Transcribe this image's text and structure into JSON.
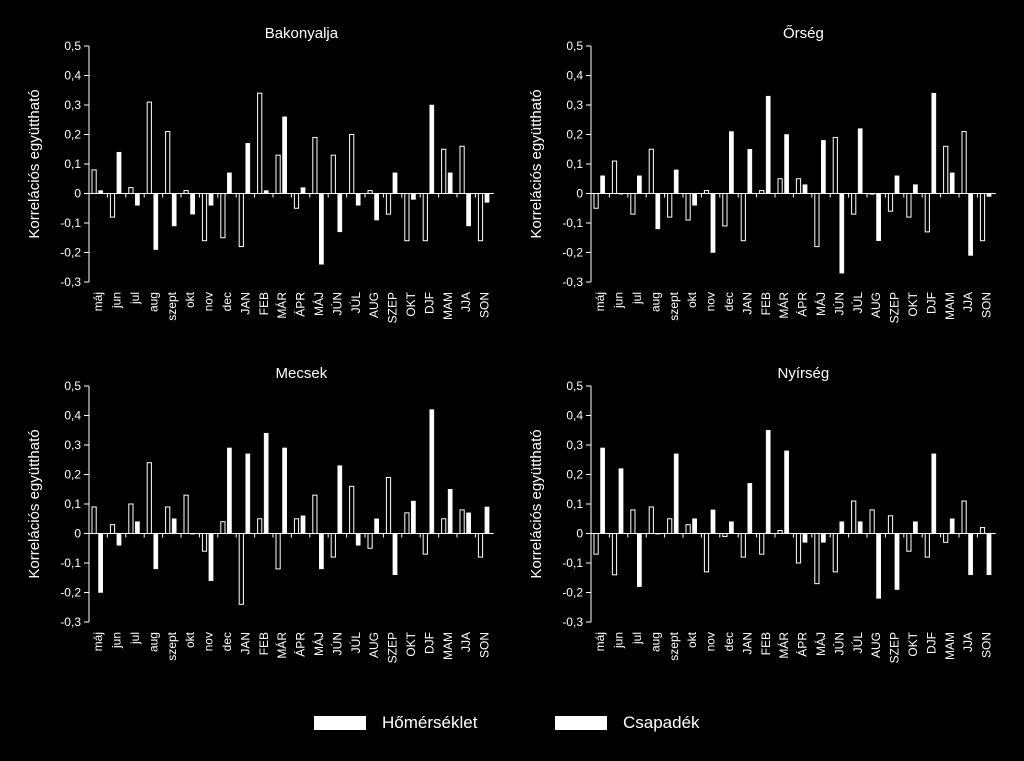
{
  "chart_data": [
    {
      "type": "bar",
      "title": "Bakonyalja",
      "ylabel": "Korrelációs együttható",
      "ylim": [
        -0.3,
        0.5
      ],
      "yticks": [
        "0,5",
        "0,4",
        "0,3",
        "0,2",
        "0,1",
        "0",
        "-0,1",
        "-0,2",
        "-0,3"
      ],
      "categories": [
        "máj",
        "jun",
        "jul",
        "aug",
        "szept",
        "okt",
        "nov",
        "dec",
        "JAN",
        "FEB",
        "MÁR",
        "ÁPR",
        "MÁJ",
        "JÚN",
        "JÚL",
        "AUG",
        "SZEP",
        "OKT",
        "DJF",
        "MAM",
        "JJA",
        "SON"
      ],
      "series": [
        {
          "name": "Hőmérséklet",
          "values": [
            0.08,
            -0.08,
            0.02,
            0.31,
            0.21,
            0.01,
            -0.16,
            -0.15,
            -0.18,
            0.34,
            0.13,
            -0.05,
            0.19,
            0.13,
            0.2,
            0.01,
            -0.07,
            -0.16,
            -0.16,
            0.15,
            0.16,
            -0.16
          ]
        },
        {
          "name": "Csapadék",
          "values": [
            0.01,
            0.14,
            -0.04,
            -0.19,
            -0.11,
            -0.07,
            -0.04,
            0.07,
            0.17,
            0.01,
            0.26,
            0.02,
            -0.24,
            -0.13,
            -0.04,
            -0.09,
            0.07,
            -0.02,
            0.3,
            0.07,
            -0.11,
            -0.03
          ]
        }
      ]
    },
    {
      "type": "bar",
      "title": "Őrség",
      "ylabel": "Korrelációs együttható",
      "ylim": [
        -0.3,
        0.5
      ],
      "yticks": [
        "0,5",
        "0,4",
        "0,3",
        "0,2",
        "0,1",
        "0",
        "-0,1",
        "-0,2",
        "-0,3"
      ],
      "categories": [
        "máj",
        "jun",
        "jul",
        "aug",
        "szept",
        "okt",
        "nov",
        "dec",
        "JAN",
        "FEB",
        "MÁR",
        "ÁPR",
        "MÁJ",
        "JÚN",
        "JÚL",
        "AUG",
        "SZEP",
        "OKT",
        "DJF",
        "MAM",
        "JJA",
        "SON"
      ],
      "series": [
        {
          "name": "Hőmérséklet",
          "values": [
            -0.05,
            0.11,
            -0.07,
            0.15,
            -0.08,
            -0.09,
            0.01,
            -0.11,
            -0.16,
            0.01,
            0.05,
            0.05,
            -0.18,
            0.19,
            -0.07,
            0.0,
            -0.06,
            -0.08,
            -0.13,
            0.16,
            0.21,
            -0.16
          ]
        },
        {
          "name": "Csapadék",
          "values": [
            0.06,
            0.0,
            0.06,
            -0.12,
            0.08,
            -0.04,
            -0.2,
            0.21,
            0.15,
            0.33,
            0.2,
            0.03,
            0.18,
            -0.27,
            0.22,
            -0.16,
            0.06,
            0.03,
            0.34,
            0.07,
            -0.21,
            -0.01
          ]
        }
      ]
    },
    {
      "type": "bar",
      "title": "Mecsek",
      "ylabel": "Korrelációs együttható",
      "ylim": [
        -0.3,
        0.5
      ],
      "yticks": [
        "0,5",
        "0,4",
        "0,3",
        "0,2",
        "0,1",
        "0",
        "-0,1",
        "-0,2",
        "-0,3"
      ],
      "categories": [
        "máj",
        "jun",
        "jul",
        "aug",
        "szept",
        "okt",
        "nov",
        "dec",
        "JAN",
        "FEB",
        "MÁR",
        "ÁPR",
        "MÁJ",
        "JÚN",
        "JÚL",
        "AUG",
        "SZEP",
        "OKT",
        "DJF",
        "MAM",
        "JJA",
        "SON"
      ],
      "series": [
        {
          "name": "Hőmérséklet",
          "values": [
            0.09,
            0.03,
            0.1,
            0.24,
            0.09,
            0.13,
            -0.06,
            0.04,
            -0.24,
            0.05,
            -0.12,
            0.05,
            0.13,
            -0.08,
            0.16,
            -0.05,
            0.19,
            0.07,
            -0.07,
            0.05,
            0.08,
            -0.08
          ]
        },
        {
          "name": "Csapadék",
          "values": [
            -0.2,
            -0.04,
            0.04,
            -0.12,
            0.05,
            0.0,
            -0.16,
            0.29,
            0.27,
            0.34,
            0.29,
            0.06,
            -0.12,
            0.23,
            -0.04,
            0.05,
            -0.14,
            0.11,
            0.42,
            0.15,
            0.07,
            0.09
          ]
        }
      ]
    },
    {
      "type": "bar",
      "title": "Nyírség",
      "ylabel": "Korrelációs együttható",
      "ylim": [
        -0.3,
        0.5
      ],
      "yticks": [
        "0,5",
        "0,4",
        "0,3",
        "0,2",
        "0,1",
        "0",
        "-0,1",
        "-0,2",
        "-0,3"
      ],
      "categories": [
        "máj",
        "jun",
        "jul",
        "aug",
        "szept",
        "okt",
        "nov",
        "dec",
        "JAN",
        "FEB",
        "MÁR",
        "ÁPR",
        "MÁJ",
        "JÚN",
        "JÚL",
        "AUG",
        "SZEP",
        "OKT",
        "DJF",
        "MAM",
        "JJA",
        "SON"
      ],
      "series": [
        {
          "name": "Hőmérséklet",
          "values": [
            -0.07,
            -0.14,
            0.08,
            0.09,
            0.05,
            0.03,
            -0.13,
            -0.01,
            -0.08,
            -0.07,
            0.01,
            -0.1,
            -0.17,
            -0.13,
            0.11,
            0.08,
            0.06,
            -0.06,
            -0.08,
            -0.03,
            0.11,
            0.02
          ]
        },
        {
          "name": "Csapadék",
          "values": [
            0.29,
            0.22,
            -0.18,
            0.0,
            0.27,
            0.05,
            0.08,
            0.04,
            0.17,
            0.35,
            0.28,
            -0.03,
            -0.03,
            0.04,
            0.04,
            -0.22,
            -0.19,
            0.04,
            0.27,
            0.05,
            -0.14,
            -0.14
          ]
        }
      ]
    }
  ],
  "legend": {
    "items": [
      {
        "label": "Hőmérséklet",
        "color": "#ffffff"
      },
      {
        "label": "Csapadék",
        "color": "#ffffff"
      }
    ]
  },
  "colors": {
    "background": "#000000",
    "foreground": "#ffffff"
  }
}
